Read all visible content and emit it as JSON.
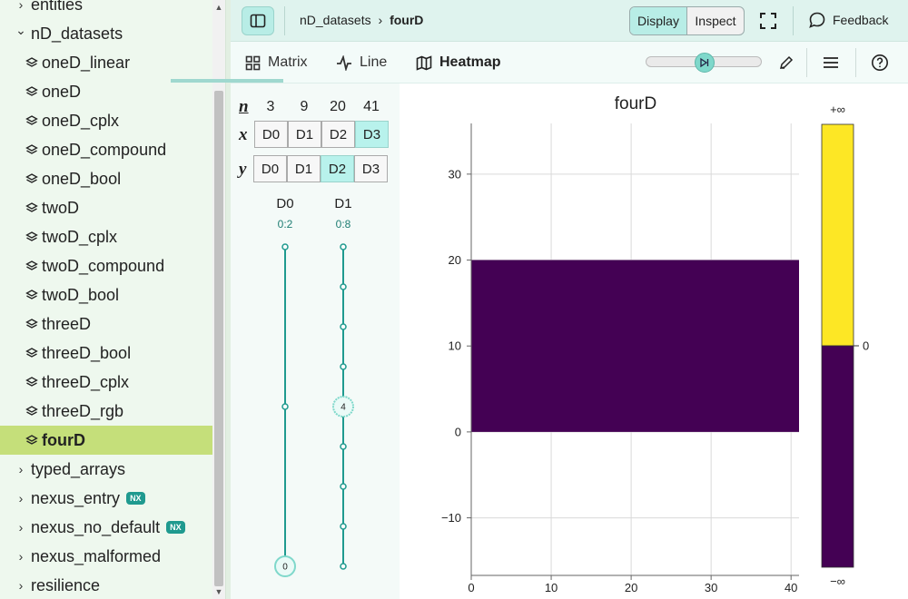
{
  "sidebar": {
    "items": [
      {
        "label": "entities",
        "kind": "group",
        "expanded": false
      },
      {
        "label": "nD_datasets",
        "kind": "group",
        "expanded": true
      },
      {
        "label": "oneD_linear",
        "kind": "dataset"
      },
      {
        "label": "oneD",
        "kind": "dataset"
      },
      {
        "label": "oneD_cplx",
        "kind": "dataset"
      },
      {
        "label": "oneD_compound",
        "kind": "dataset"
      },
      {
        "label": "oneD_bool",
        "kind": "dataset"
      },
      {
        "label": "twoD",
        "kind": "dataset"
      },
      {
        "label": "twoD_cplx",
        "kind": "dataset"
      },
      {
        "label": "twoD_compound",
        "kind": "dataset"
      },
      {
        "label": "twoD_bool",
        "kind": "dataset"
      },
      {
        "label": "threeD",
        "kind": "dataset"
      },
      {
        "label": "threeD_bool",
        "kind": "dataset"
      },
      {
        "label": "threeD_cplx",
        "kind": "dataset"
      },
      {
        "label": "threeD_rgb",
        "kind": "dataset"
      },
      {
        "label": "fourD",
        "kind": "dataset",
        "selected": true
      },
      {
        "label": "typed_arrays",
        "kind": "group",
        "expanded": false
      },
      {
        "label": "nexus_entry",
        "kind": "group",
        "expanded": false,
        "badge": "NX"
      },
      {
        "label": "nexus_no_default",
        "kind": "group",
        "expanded": false,
        "badge": "NX"
      },
      {
        "label": "nexus_malformed",
        "kind": "group",
        "expanded": false
      },
      {
        "label": "resilience",
        "kind": "group",
        "expanded": false
      }
    ]
  },
  "header": {
    "breadcrumb_parent": "nD_datasets",
    "breadcrumb_separator": "›",
    "breadcrumb_current": "fourD",
    "mode_display": "Display",
    "mode_inspect": "Inspect",
    "feedback_label": "Feedback"
  },
  "toolbar": {
    "tabs": [
      {
        "label": "Matrix",
        "icon": "grid-icon"
      },
      {
        "label": "Line",
        "icon": "line-chart-icon"
      },
      {
        "label": "Heatmap",
        "icon": "map-icon",
        "active": true
      }
    ]
  },
  "dims": {
    "n_label": "n",
    "x_label": "x",
    "y_label": "y",
    "sizes": [
      "3",
      "9",
      "20",
      "41"
    ],
    "buttons": [
      "D0",
      "D1",
      "D2",
      "D3"
    ],
    "x_active": 3,
    "y_active": 2,
    "slicers": [
      {
        "label": "D0",
        "range": "0:2",
        "value": "0",
        "steps": 3,
        "index": 0
      },
      {
        "label": "D1",
        "range": "0:8",
        "value": "4",
        "steps": 9,
        "index": 4
      }
    ]
  },
  "heatmap": {
    "title": "fourD",
    "x_ticks": [
      "0",
      "10",
      "20",
      "30",
      "40"
    ],
    "y_ticks": [
      "30",
      "20",
      "10",
      "0",
      "−10"
    ],
    "colorbar_top": "+∞",
    "colorbar_mid": "0",
    "colorbar_bottom": "−∞",
    "colors": {
      "low": "#440154",
      "high": "#fde725"
    }
  }
}
